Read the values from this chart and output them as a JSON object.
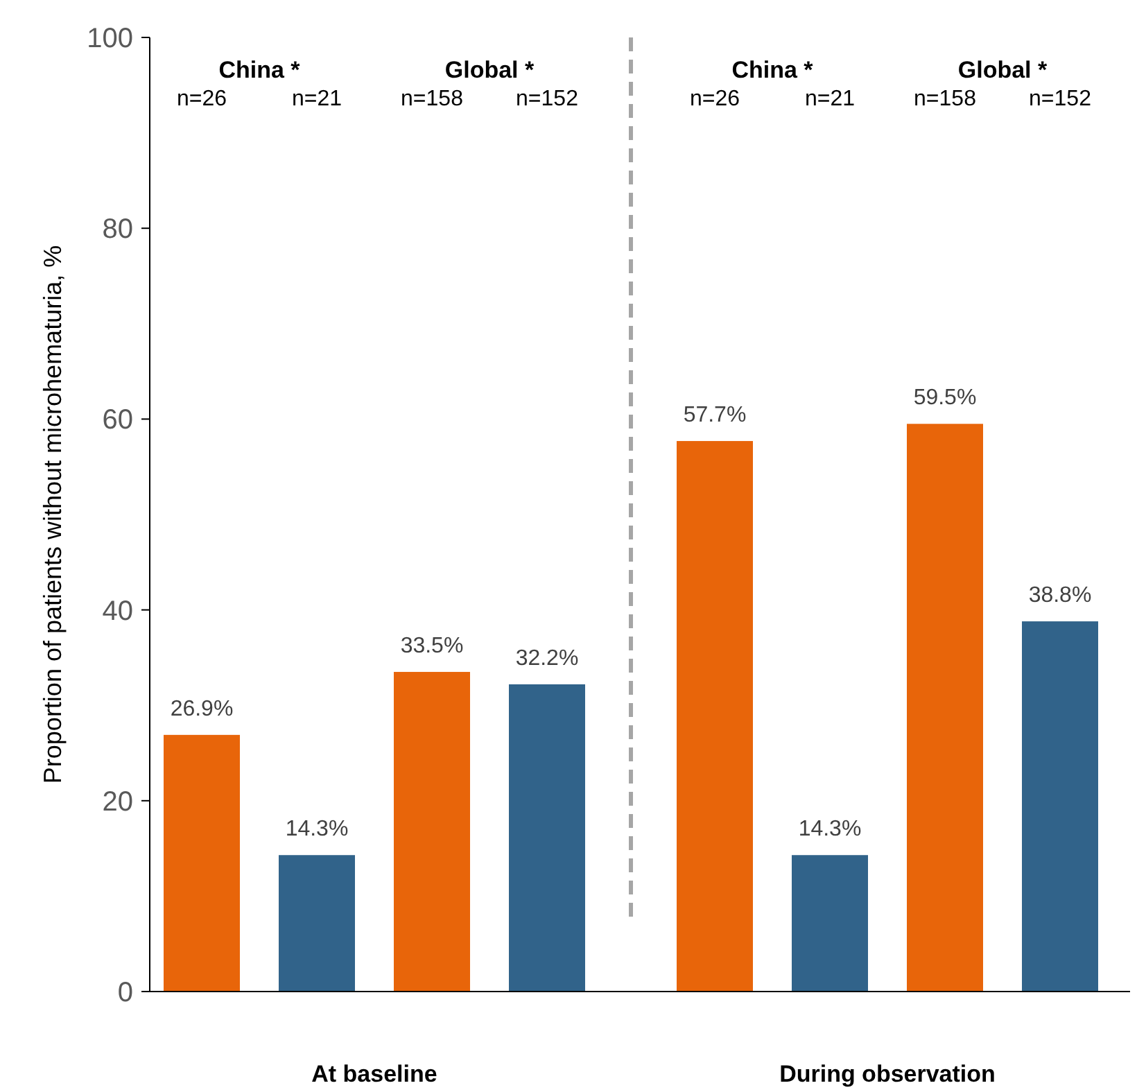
{
  "chart_data": {
    "type": "bar",
    "categories": [
      "At baseline",
      "During observation"
    ],
    "ylabel": "Proportion of patients without microhematuria, %",
    "ylim": [
      0,
      100
    ],
    "yticks": [
      0,
      20,
      40,
      60,
      80,
      100
    ],
    "series": [
      {
        "color": "#e8650a",
        "values": [
          26.9,
          57.7
        ],
        "value_labels": [
          "26.9%",
          "57.7%"
        ]
      },
      {
        "color": "#31638a",
        "values": [
          14.3,
          14.3
        ],
        "value_labels": [
          "14.3%",
          "14.3%"
        ]
      },
      {
        "color": "#e8650a",
        "values": [
          33.5,
          59.5
        ],
        "value_labels": [
          "33.5%",
          "59.5%"
        ]
      },
      {
        "color": "#31638a",
        "values": [
          32.2,
          38.8
        ],
        "value_labels": [
          "32.2%",
          "38.8%"
        ]
      }
    ],
    "annotations": [
      "China *",
      "Global *",
      "China *",
      "Global *",
      "n=26",
      "n=21",
      "n=158",
      "n=152",
      "n=26",
      "n=21",
      "n=158",
      "n=152"
    ]
  }
}
